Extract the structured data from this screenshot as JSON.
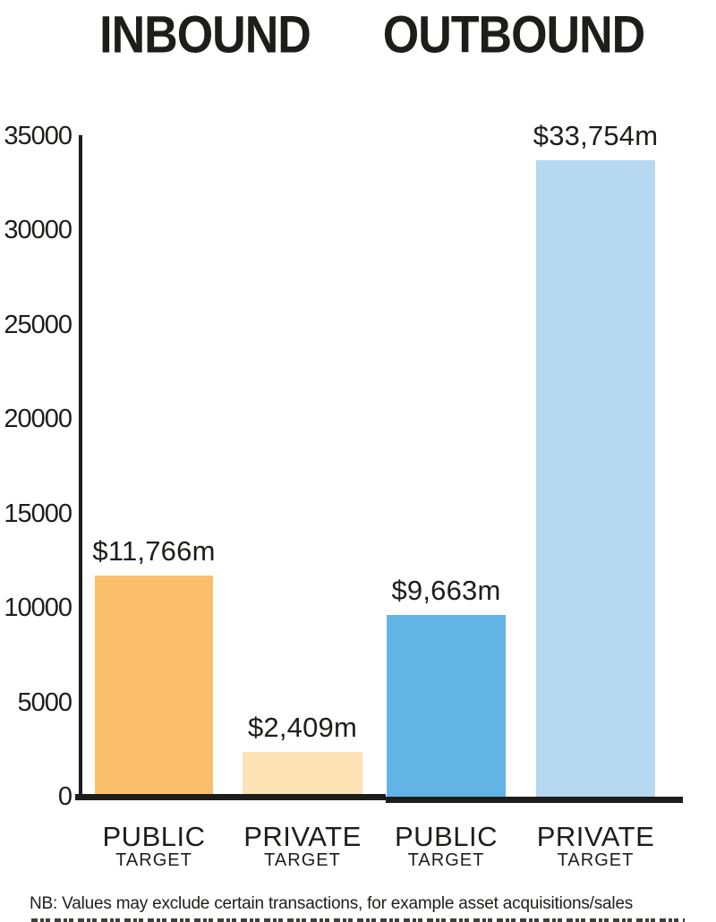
{
  "titles": {
    "inbound": "INBOUND",
    "outbound": "OUTBOUND"
  },
  "chart_data": {
    "type": "bar",
    "title": "INBOUND / OUTBOUND",
    "groups": [
      "INBOUND",
      "OUTBOUND"
    ],
    "categories": [
      {
        "group": "INBOUND",
        "label": "PUBLIC",
        "sublabel": "TARGET"
      },
      {
        "group": "INBOUND",
        "label": "PRIVATE",
        "sublabel": "TARGET"
      },
      {
        "group": "OUTBOUND",
        "label": "PUBLIC",
        "sublabel": "TARGET"
      },
      {
        "group": "OUTBOUND",
        "label": "PRIVATE",
        "sublabel": "TARGET"
      }
    ],
    "values": [
      11766,
      2409,
      9663,
      33754
    ],
    "value_labels": [
      "$11,766m",
      "$2,409m",
      "$9,663m",
      "$33,754m"
    ],
    "bar_colors": [
      "#fbbf6b",
      "#fde2b5",
      "#62b4e5",
      "#b6d9f1"
    ],
    "axis_color": "#1d1d1b",
    "ylim": [
      0,
      35000
    ],
    "yticks": [
      0,
      5000,
      10000,
      15000,
      20000,
      25000,
      30000,
      35000
    ],
    "grid": false,
    "legend": false,
    "xlabel": "",
    "ylabel": ""
  },
  "note": "NB: Values may exclude certain transactions, for example asset acquisitions/sales"
}
